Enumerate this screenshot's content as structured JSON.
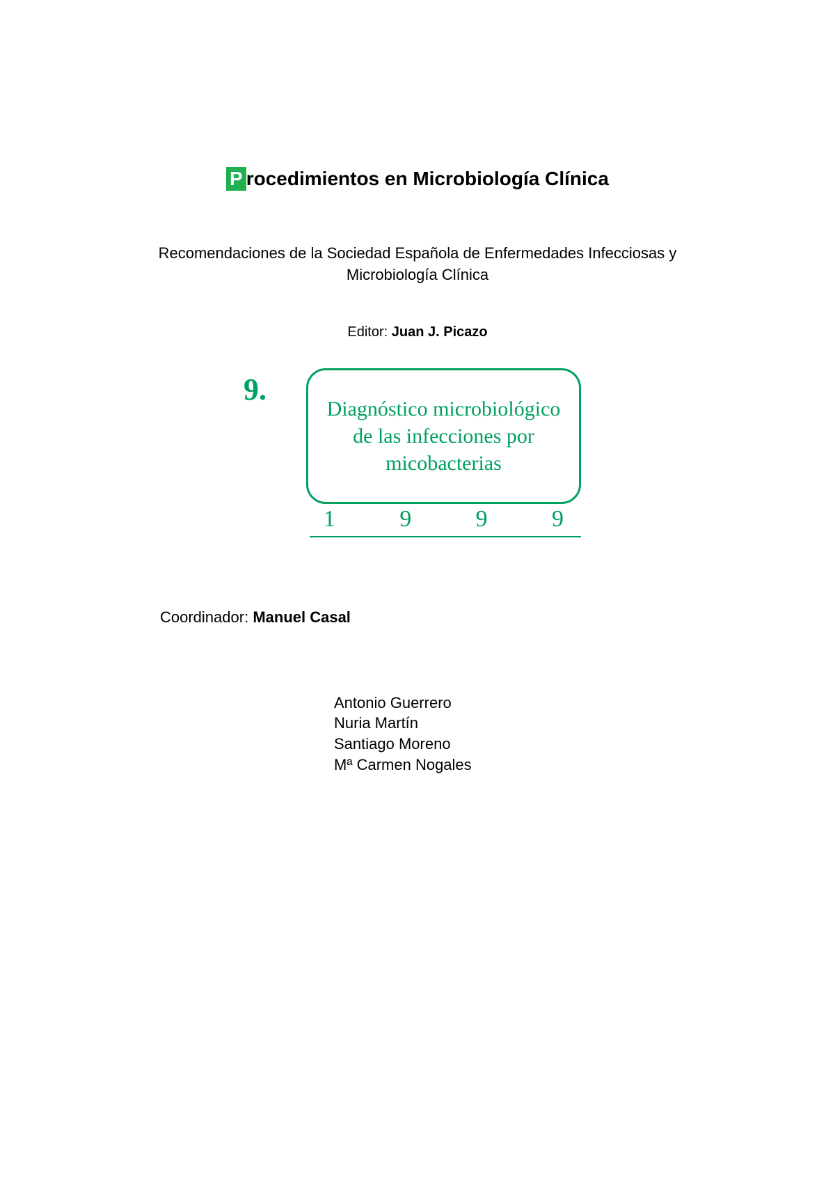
{
  "title": {
    "first_letter": "P",
    "rest": "rocedimientos en Microbiología Clínica",
    "first_letter_bg_color": "#20b050",
    "first_letter_text_color": "#ffffff"
  },
  "subtitle": "Recomendaciones de la Sociedad Española de Enfermedades Infecciosas y Microbiología Clínica",
  "editor": {
    "label": "Editor: ",
    "name": "Juan J. Picazo"
  },
  "figure": {
    "chapter_number": "9.",
    "box_text": "Diagnóstico microbiológico de las infecciones por micobacterias",
    "year_digits": [
      "1",
      "9",
      "9",
      "9"
    ],
    "accent_color": "#00a060",
    "border_width": 3,
    "border_radius": 28,
    "font_family": "Georgia, serif",
    "box_fontsize": 30,
    "number_fontsize": 44,
    "year_fontsize": 34
  },
  "coordinator": {
    "label": "Coordinador: ",
    "name": "Manuel Casal"
  },
  "authors": [
    "Antonio Guerrero",
    "Nuria Martín",
    "Santiago Moreno",
    "Mª Carmen Nogales"
  ],
  "colors": {
    "background": "#ffffff",
    "text": "#000000",
    "accent_green": "#00a060",
    "title_bg_green": "#20b050"
  },
  "typography": {
    "body_font": "Arial, Helvetica, sans-serif",
    "serif_font": "Georgia, Times New Roman, serif",
    "title_fontsize": 28,
    "subtitle_fontsize": 22,
    "body_fontsize": 22
  }
}
